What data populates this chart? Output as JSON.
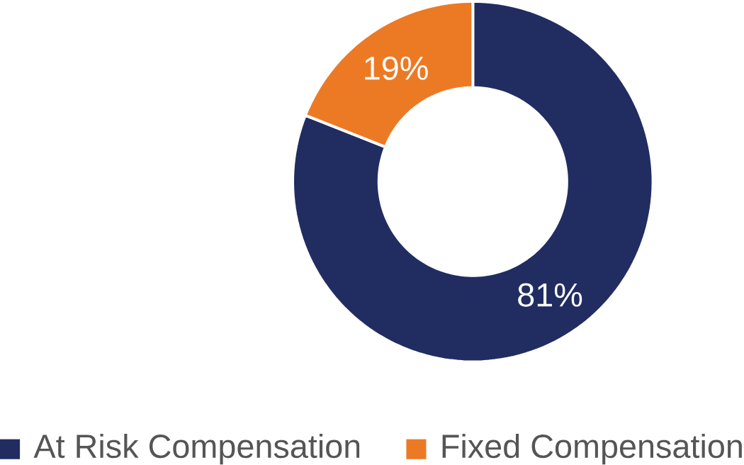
{
  "chart_data": {
    "type": "donut",
    "categories": [
      "At Risk Compensation",
      "Fixed Compensation"
    ],
    "values": [
      81,
      19
    ],
    "colors": [
      "#212d61",
      "#ec7a25"
    ],
    "value_labels": [
      "81%",
      "19%"
    ],
    "legend": "bottom"
  }
}
